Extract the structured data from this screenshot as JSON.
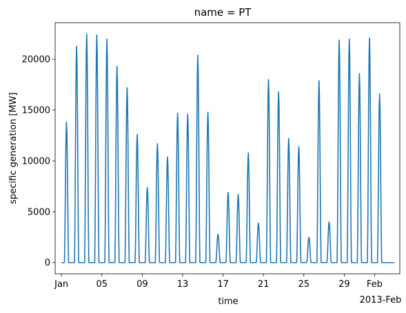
{
  "chart_data": {
    "type": "line",
    "title": "name = PT",
    "xlabel": "time",
    "ylabel": "specific generation [MW]",
    "x_offset_label": "2013-Feb",
    "x_tick_labels": [
      "Jan",
      "05",
      "09",
      "13",
      "17",
      "21",
      "25",
      "29",
      "Feb"
    ],
    "x_tick_dates": [
      "2013-01-01",
      "2013-01-05",
      "2013-01-09",
      "2013-01-13",
      "2013-01-17",
      "2013-01-21",
      "2013-01-25",
      "2013-01-29",
      "2013-02-01"
    ],
    "xlim": [
      "2012-12-31T09:00",
      "2013-02-03T12:00"
    ],
    "y_ticks": [
      0,
      5000,
      10000,
      15000,
      20000
    ],
    "y_tick_labels": [
      "0",
      "5000",
      "10000",
      "15000",
      "20000"
    ],
    "ylim": [
      -1100,
      23600
    ],
    "grid": false,
    "line_color": "#1f77b4",
    "series": [
      {
        "x_start": "2013-01-01T00:00",
        "x_end": "2013-02-02T23:00",
        "baseline": 0,
        "daily_peaks": [
          {
            "day": "2013-01-01",
            "peak": 13800
          },
          {
            "day": "2013-01-02",
            "peak": 21300
          },
          {
            "day": "2013-01-03",
            "peak": 22500
          },
          {
            "day": "2013-01-04",
            "peak": 22400
          },
          {
            "day": "2013-01-05",
            "peak": 22000
          },
          {
            "day": "2013-01-06",
            "peak": 19300
          },
          {
            "day": "2013-01-07",
            "peak": 17200
          },
          {
            "day": "2013-01-08",
            "peak": 12600
          },
          {
            "day": "2013-01-09",
            "peak": 7400
          },
          {
            "day": "2013-01-10",
            "peak": 11700
          },
          {
            "day": "2013-01-11",
            "peak": 10400
          },
          {
            "day": "2013-01-12",
            "peak": 14700
          },
          {
            "day": "2013-01-13",
            "peak": 14600
          },
          {
            "day": "2013-01-14",
            "peak": 20400
          },
          {
            "day": "2013-01-15",
            "peak": 14800
          },
          {
            "day": "2013-01-16",
            "peak": 2800
          },
          {
            "day": "2013-01-17",
            "peak": 6900
          },
          {
            "day": "2013-01-18",
            "peak": 6700
          },
          {
            "day": "2013-01-19",
            "peak": 10800
          },
          {
            "day": "2013-01-20",
            "peak": 3900
          },
          {
            "day": "2013-01-21",
            "peak": 18000
          },
          {
            "day": "2013-01-22",
            "peak": 16800
          },
          {
            "day": "2013-01-23",
            "peak": 12200
          },
          {
            "day": "2013-01-24",
            "peak": 11400
          },
          {
            "day": "2013-01-25",
            "peak": 2500
          },
          {
            "day": "2013-01-26",
            "peak": 17900
          },
          {
            "day": "2013-01-27",
            "peak": 4000
          },
          {
            "day": "2013-01-28",
            "peak": 21900
          },
          {
            "day": "2013-01-29",
            "peak": 22000
          },
          {
            "day": "2013-01-30",
            "peak": 18600
          },
          {
            "day": "2013-01-31",
            "peak": 22100
          },
          {
            "day": "2013-02-01",
            "peak": 16600
          },
          {
            "day": "2013-02-02",
            "peak": 0
          }
        ]
      }
    ]
  }
}
